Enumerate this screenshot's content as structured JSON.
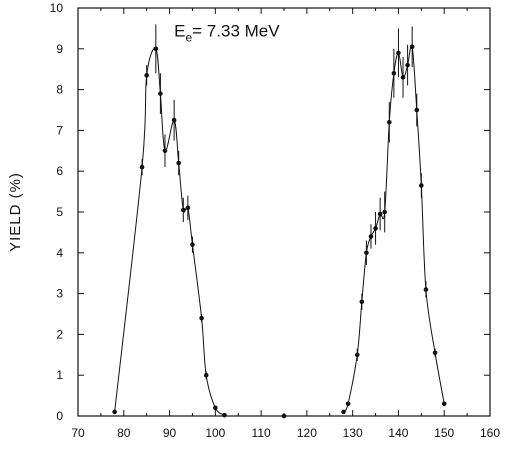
{
  "chart_data": {
    "type": "scatter",
    "ylabel": "YIELD (%)",
    "xlabel": "",
    "xlim": [
      70,
      160
    ],
    "ylim": [
      0,
      10
    ],
    "xticks": [
      70,
      80,
      90,
      100,
      110,
      120,
      130,
      140,
      150,
      160
    ],
    "yticks": [
      0,
      1,
      2,
      3,
      4,
      5,
      6,
      7,
      8,
      9,
      10
    ],
    "grid": false,
    "annotation": {
      "main": "E",
      "sub": "e",
      "rest": "= 7.33 MeV"
    },
    "series": [
      {
        "points": [
          {
            "x": 78,
            "y": 0.1,
            "err": 0
          },
          {
            "x": 84,
            "y": 6.1,
            "err": 0.2
          },
          {
            "x": 85,
            "y": 8.35,
            "err": 0.25
          },
          {
            "x": 87,
            "y": 9.0,
            "err": 0.6
          },
          {
            "x": 88,
            "y": 7.9,
            "err": 0.5
          },
          {
            "x": 89,
            "y": 6.5,
            "err": 0.4
          },
          {
            "x": 91,
            "y": 7.25,
            "err": 0.5
          },
          {
            "x": 92,
            "y": 6.2,
            "err": 0.3
          },
          {
            "x": 93,
            "y": 5.05,
            "err": 0.3
          },
          {
            "x": 94,
            "y": 5.1,
            "err": 0.3
          },
          {
            "x": 95,
            "y": 4.2,
            "err": 0.2
          },
          {
            "x": 97,
            "y": 2.4,
            "err": 0.1
          },
          {
            "x": 98,
            "y": 1.0,
            "err": 0.1
          },
          {
            "x": 100,
            "y": 0.2,
            "err": 0.05
          },
          {
            "x": 102,
            "y": 0.02,
            "err": 0
          },
          {
            "x": 115,
            "y": 0.0,
            "err": 0
          },
          {
            "x": 128,
            "y": 0.1,
            "err": 0
          },
          {
            "x": 129,
            "y": 0.3,
            "err": 0.05
          },
          {
            "x": 131,
            "y": 1.5,
            "err": 0.15
          },
          {
            "x": 132,
            "y": 2.8,
            "err": 0.2
          },
          {
            "x": 133,
            "y": 4.0,
            "err": 0.3
          },
          {
            "x": 134,
            "y": 4.4,
            "err": 0.3
          },
          {
            "x": 135,
            "y": 4.6,
            "err": 0.4
          },
          {
            "x": 136,
            "y": 4.95,
            "err": 0.4
          },
          {
            "x": 137,
            "y": 5.0,
            "err": 0.5
          },
          {
            "x": 138,
            "y": 7.2,
            "err": 0.5
          },
          {
            "x": 139,
            "y": 8.4,
            "err": 0.6
          },
          {
            "x": 140,
            "y": 8.9,
            "err": 0.6
          },
          {
            "x": 141,
            "y": 8.3,
            "err": 0.5
          },
          {
            "x": 142,
            "y": 8.6,
            "err": 0.5
          },
          {
            "x": 143,
            "y": 9.05,
            "err": 0.5
          },
          {
            "x": 144,
            "y": 7.5,
            "err": 0.4
          },
          {
            "x": 145,
            "y": 5.65,
            "err": 0.3
          },
          {
            "x": 146,
            "y": 3.1,
            "err": 0.2
          },
          {
            "x": 148,
            "y": 1.55,
            "err": 0.1
          },
          {
            "x": 150,
            "y": 0.3,
            "err": 0.05
          }
        ]
      }
    ]
  }
}
